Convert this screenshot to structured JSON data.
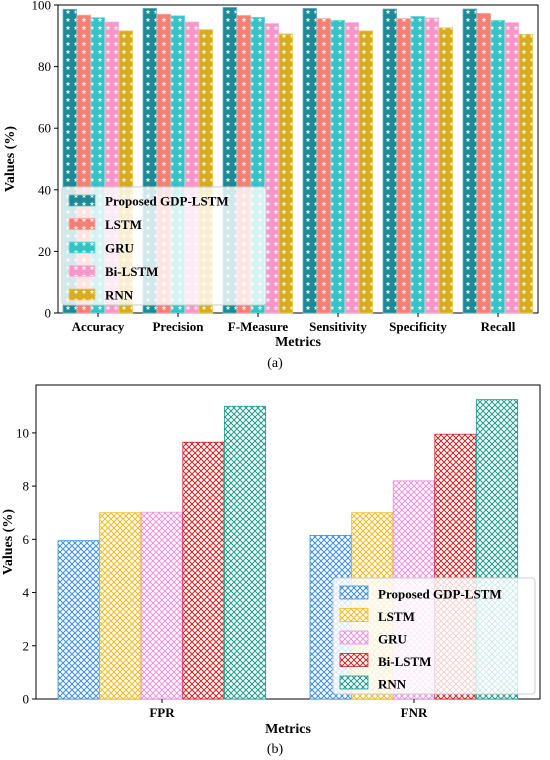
{
  "chart_data": [
    {
      "type": "bar",
      "caption": "(a)",
      "xlabel": "Metrics",
      "ylabel": "Values (%)",
      "ylim": [
        0,
        100
      ],
      "yticks": [
        0,
        20,
        40,
        60,
        80,
        100
      ],
      "categories": [
        "Accuracy",
        "Precision",
        "F-Measure",
        "Sensitivity",
        "Specificity",
        "Recall"
      ],
      "series": [
        {
          "name": "Proposed GDP-LSTM",
          "values": [
            98.6,
            98.9,
            99.2,
            98.9,
            98.7,
            98.7
          ],
          "color": "#1b8a96",
          "pattern": "stars"
        },
        {
          "name": "LSTM",
          "values": [
            96.7,
            97.0,
            96.6,
            95.6,
            95.6,
            97.3
          ],
          "color": "#f47f74",
          "pattern": "stars"
        },
        {
          "name": "GRU",
          "values": [
            95.9,
            96.5,
            96.0,
            95.0,
            96.3,
            95.0
          ],
          "color": "#33c2c6",
          "pattern": "stars"
        },
        {
          "name": "Bi-LSTM",
          "values": [
            94.5,
            94.5,
            94.0,
            94.3,
            95.8,
            94.3
          ],
          "color": "#f597c8",
          "pattern": "stars"
        },
        {
          "name": "RNN",
          "values": [
            91.6,
            92.0,
            90.6,
            91.6,
            92.6,
            90.5
          ],
          "color": "#d9ac1f",
          "pattern": "stars"
        }
      ],
      "grid": false,
      "legend": "lower-left"
    },
    {
      "type": "bar",
      "caption": "(b)",
      "xlabel": "Metrics",
      "ylabel": "Values (%)",
      "ylim": [
        0,
        11.8
      ],
      "yticks": [
        0,
        2,
        4,
        6,
        8,
        10
      ],
      "categories": [
        "FPR",
        "FNR"
      ],
      "series": [
        {
          "name": "Proposed GDP-LSTM",
          "values": [
            5.95,
            6.15
          ],
          "color": "#3a8ee0",
          "pattern": "cross-hatch"
        },
        {
          "name": "LSTM",
          "values": [
            7.0,
            7.0
          ],
          "color": "#f5b81b",
          "pattern": "cross-hatch"
        },
        {
          "name": "GRU",
          "values": [
            7.02,
            8.2
          ],
          "color": "#ee8fe0",
          "pattern": "cross-hatch"
        },
        {
          "name": "Bi-LSTM",
          "values": [
            9.65,
            9.95
          ],
          "color": "#cf2020",
          "pattern": "cross-hatch"
        },
        {
          "name": "RNN",
          "values": [
            11.0,
            11.25
          ],
          "color": "#1a9a8c",
          "pattern": "cross-hatch"
        }
      ],
      "grid": false,
      "legend": "lower-right"
    }
  ]
}
